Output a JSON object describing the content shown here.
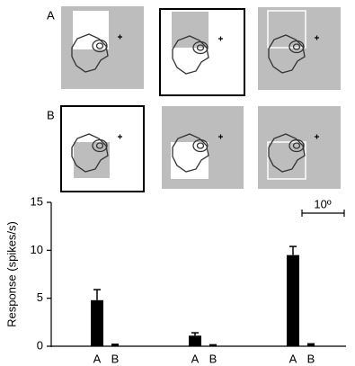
{
  "figure": {
    "row_labels": [
      "A",
      "B"
    ]
  },
  "chart_data": {
    "type": "bar",
    "y_label": "Response (spikes/s)",
    "categories": [
      "A",
      "B",
      "A",
      "B",
      "A",
      "B"
    ],
    "values": [
      4.8,
      0.15,
      1.1,
      0.1,
      9.5,
      0.2
    ],
    "errors": [
      1.1,
      0.05,
      0.3,
      0.05,
      0.9,
      0.05
    ],
    "color": "#000000",
    "ylim": [
      0,
      15
    ],
    "yticks": [
      0,
      5,
      10,
      15
    ],
    "scale_bar_label": "10º"
  }
}
